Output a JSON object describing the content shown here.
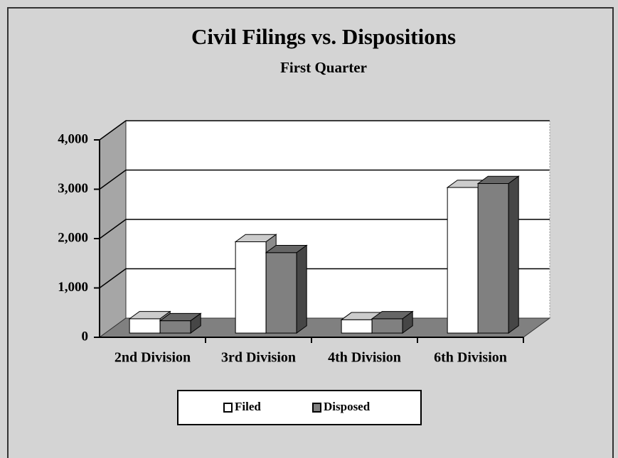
{
  "chart_data": {
    "type": "bar3d",
    "title": "Civil Filings vs. Dispositions",
    "subtitle": "First Quarter",
    "categories": [
      "2nd Division",
      "3rd Division",
      "4th Division",
      "6th Division"
    ],
    "series": [
      {
        "name": "Filed",
        "color": "#ffffff",
        "values": [
          290,
          1850,
          270,
          2950
        ]
      },
      {
        "name": "Disposed",
        "color": "#808080",
        "values": [
          250,
          1630,
          290,
          3030
        ]
      }
    ],
    "ylim": [
      0,
      4000
    ],
    "yticks": [
      0,
      {
        "value": 1000,
        "label": "1,000"
      },
      {
        "value": 2000,
        "label": "2,000"
      },
      {
        "value": 3000,
        "label": "3,000"
      },
      {
        "value": 4000,
        "label": "4,000"
      }
    ],
    "grid": true,
    "legend": "bottom"
  }
}
